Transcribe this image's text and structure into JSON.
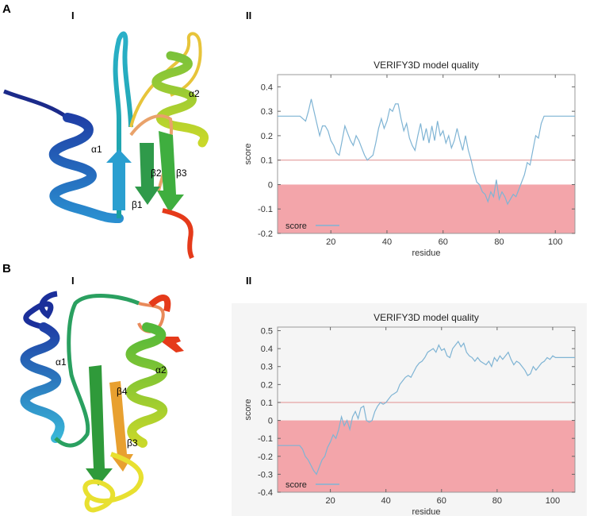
{
  "panels": [
    {
      "letter": "A",
      "structure_label": "I",
      "plot_label": "II"
    },
    {
      "letter": "B",
      "structure_label": "I",
      "plot_label": "II"
    }
  ],
  "structures": [
    {
      "labels": [
        "α1",
        "α2",
        "β1",
        "β2",
        "β3"
      ]
    },
    {
      "labels": [
        "α1",
        "α2",
        "β3",
        "β4"
      ]
    }
  ],
  "colors": {
    "score_line": "#7fb4d4",
    "threshold_line": "#e39a9a",
    "negative_region": "#f3a5aa",
    "panel_b_plot_bg": "#f5f5f5"
  },
  "chart_data": [
    {
      "type": "line",
      "title": "VERIFY3D model quality",
      "xlabel": "residue",
      "ylabel": "score",
      "xlim": [
        1,
        107
      ],
      "ylim": [
        -0.2,
        0.45
      ],
      "xticks": [
        20,
        40,
        60,
        80,
        100
      ],
      "yticks": [
        -0.2,
        -0.1,
        0,
        0.1,
        0.2,
        0.3,
        0.4
      ],
      "ytick_labels": [
        "-0.2",
        "-0.1",
        "0",
        "0.1",
        "0.2",
        "0.3",
        "0.4"
      ],
      "threshold": 0.1,
      "legend": "score",
      "legend_position": "bottom-left",
      "series": [
        {
          "name": "score",
          "x": [
            1,
            2,
            3,
            4,
            5,
            6,
            7,
            8,
            9,
            10,
            11,
            12,
            13,
            14,
            15,
            16,
            17,
            18,
            19,
            20,
            21,
            22,
            23,
            24,
            25,
            26,
            27,
            28,
            29,
            30,
            31,
            32,
            33,
            34,
            35,
            36,
            37,
            38,
            39,
            40,
            41,
            42,
            43,
            44,
            45,
            46,
            47,
            48,
            49,
            50,
            51,
            52,
            53,
            54,
            55,
            56,
            57,
            58,
            59,
            60,
            61,
            62,
            63,
            64,
            65,
            66,
            67,
            68,
            69,
            70,
            71,
            72,
            73,
            74,
            75,
            76,
            77,
            78,
            79,
            80,
            81,
            82,
            83,
            84,
            85,
            86,
            87,
            88,
            89,
            90,
            91,
            92,
            93,
            94,
            95,
            96,
            97,
            98,
            99,
            100,
            101,
            102,
            103,
            104,
            105,
            106,
            107
          ],
          "y": [
            0.28,
            0.28,
            0.28,
            0.28,
            0.28,
            0.28,
            0.28,
            0.28,
            0.28,
            0.27,
            0.26,
            0.3,
            0.35,
            0.3,
            0.25,
            0.2,
            0.24,
            0.24,
            0.22,
            0.18,
            0.16,
            0.13,
            0.12,
            0.18,
            0.24,
            0.21,
            0.18,
            0.16,
            0.2,
            0.18,
            0.15,
            0.12,
            0.1,
            0.11,
            0.12,
            0.17,
            0.23,
            0.27,
            0.23,
            0.26,
            0.31,
            0.3,
            0.33,
            0.33,
            0.27,
            0.22,
            0.25,
            0.19,
            0.16,
            0.14,
            0.2,
            0.25,
            0.18,
            0.23,
            0.17,
            0.24,
            0.18,
            0.26,
            0.2,
            0.22,
            0.17,
            0.2,
            0.15,
            0.18,
            0.23,
            0.18,
            0.14,
            0.2,
            0.14,
            0.1,
            0.05,
            0.01,
            0.0,
            -0.03,
            -0.04,
            -0.07,
            -0.03,
            -0.05,
            0.02,
            -0.06,
            -0.03,
            -0.05,
            -0.08,
            -0.06,
            -0.04,
            -0.05,
            -0.02,
            0.01,
            0.04,
            0.09,
            0.08,
            0.14,
            0.2,
            0.19,
            0.25,
            0.28,
            0.28,
            0.28,
            0.28,
            0.28,
            0.28,
            0.28,
            0.28,
            0.28,
            0.28,
            0.28,
            0.28
          ]
        }
      ]
    },
    {
      "type": "line",
      "title": "VERIFY3D model quality",
      "xlabel": "residue",
      "ylabel": "score",
      "xlim": [
        1,
        108
      ],
      "ylim": [
        -0.4,
        0.52
      ],
      "xticks": [
        20,
        40,
        60,
        80,
        100
      ],
      "yticks": [
        -0.4,
        -0.3,
        -0.2,
        -0.1,
        0,
        0.1,
        0.2,
        0.3,
        0.4,
        0.5
      ],
      "ytick_labels": [
        "-0.4",
        "-0.3",
        "-0.2",
        "-0.1",
        "0",
        "0.1",
        "0.2",
        "0.3",
        "0.4",
        "0.5"
      ],
      "threshold": 0.1,
      "legend": "score",
      "legend_position": "bottom-left",
      "series": [
        {
          "name": "score",
          "x": [
            1,
            3,
            5,
            7,
            9,
            10,
            11,
            12,
            13,
            14,
            15,
            16,
            17,
            18,
            19,
            20,
            21,
            22,
            23,
            24,
            25,
            26,
            27,
            28,
            29,
            30,
            31,
            32,
            33,
            34,
            35,
            36,
            37,
            38,
            39,
            40,
            41,
            42,
            43,
            44,
            45,
            46,
            47,
            48,
            49,
            50,
            51,
            52,
            53,
            54,
            55,
            56,
            57,
            58,
            59,
            60,
            61,
            62,
            63,
            64,
            65,
            66,
            67,
            68,
            69,
            70,
            71,
            72,
            73,
            74,
            75,
            76,
            77,
            78,
            79,
            80,
            81,
            82,
            83,
            84,
            85,
            86,
            87,
            88,
            89,
            90,
            91,
            92,
            93,
            94,
            95,
            96,
            97,
            98,
            99,
            100,
            101,
            102,
            103,
            104,
            105,
            106,
            107,
            108
          ],
          "y": [
            -0.14,
            -0.14,
            -0.14,
            -0.14,
            -0.14,
            -0.16,
            -0.2,
            -0.22,
            -0.25,
            -0.28,
            -0.3,
            -0.26,
            -0.22,
            -0.2,
            -0.15,
            -0.12,
            -0.08,
            -0.1,
            -0.05,
            0.02,
            -0.03,
            0.0,
            -0.05,
            0.02,
            0.05,
            0.01,
            0.07,
            0.08,
            0.0,
            -0.01,
            0.0,
            0.05,
            0.08,
            0.1,
            0.09,
            0.1,
            0.12,
            0.14,
            0.15,
            0.16,
            0.2,
            0.22,
            0.24,
            0.25,
            0.24,
            0.27,
            0.3,
            0.32,
            0.33,
            0.35,
            0.38,
            0.39,
            0.4,
            0.38,
            0.42,
            0.39,
            0.4,
            0.36,
            0.35,
            0.4,
            0.42,
            0.44,
            0.41,
            0.43,
            0.38,
            0.36,
            0.35,
            0.33,
            0.35,
            0.33,
            0.32,
            0.31,
            0.33,
            0.3,
            0.35,
            0.33,
            0.36,
            0.34,
            0.36,
            0.38,
            0.34,
            0.31,
            0.33,
            0.32,
            0.3,
            0.28,
            0.25,
            0.26,
            0.3,
            0.28,
            0.3,
            0.32,
            0.33,
            0.35,
            0.34,
            0.36,
            0.35,
            0.35,
            0.35,
            0.35,
            0.35,
            0.35,
            0.35,
            0.35
          ]
        }
      ]
    }
  ]
}
